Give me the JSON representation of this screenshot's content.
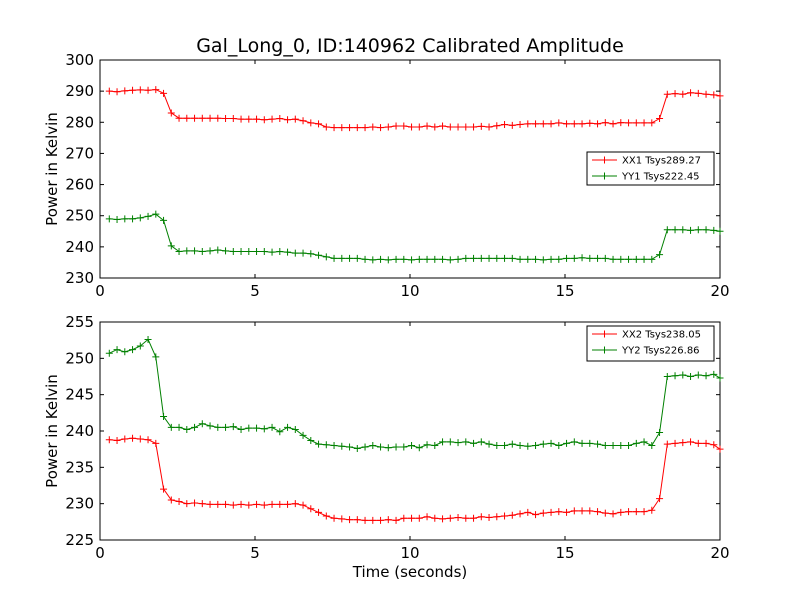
{
  "figure": {
    "title": "Gal_Long_0, ID:140962 Calibrated Amplitude"
  },
  "chart_data": [
    {
      "type": "line",
      "title": "Gal_Long_0, ID:140962 Calibrated Amplitude",
      "xlabel": "",
      "ylabel": "Power in Kelvin",
      "xlim": [
        0,
        20
      ],
      "ylim": [
        230,
        300
      ],
      "xticks": [
        "0",
        "5",
        "10",
        "15",
        "20"
      ],
      "yticks": [
        "230",
        "240",
        "250",
        "260",
        "270",
        "280",
        "290",
        "300"
      ],
      "grid": false,
      "legend_position": "center-right",
      "x": [
        0.3,
        0.55,
        0.8,
        1.05,
        1.3,
        1.55,
        1.8,
        2.05,
        2.3,
        2.55,
        2.8,
        3.05,
        3.3,
        3.55,
        3.8,
        4.05,
        4.3,
        4.55,
        4.8,
        5.05,
        5.3,
        5.55,
        5.8,
        6.05,
        6.3,
        6.55,
        6.8,
        7.05,
        7.3,
        7.55,
        7.8,
        8.05,
        8.3,
        8.55,
        8.8,
        9.05,
        9.3,
        9.55,
        9.8,
        10.05,
        10.3,
        10.55,
        10.8,
        11.05,
        11.3,
        11.55,
        11.8,
        12.05,
        12.3,
        12.55,
        12.8,
        13.05,
        13.3,
        13.55,
        13.8,
        14.05,
        14.3,
        14.55,
        14.8,
        15.05,
        15.3,
        15.55,
        15.8,
        16.05,
        16.3,
        16.55,
        16.8,
        17.05,
        17.3,
        17.55,
        17.8,
        18.05,
        18.3,
        18.55,
        18.8,
        19.05,
        19.3,
        19.55,
        19.8,
        20.0
      ],
      "series": [
        {
          "name": "XX1 Tsys289.27",
          "color": "#ff0000",
          "values": [
            290.0,
            289.8,
            290.1,
            290.3,
            290.4,
            290.3,
            290.5,
            289.3,
            283.0,
            281.3,
            281.3,
            281.3,
            281.3,
            281.3,
            281.3,
            281.2,
            281.2,
            281.0,
            281.0,
            281.0,
            280.8,
            281.0,
            281.2,
            280.8,
            281.0,
            280.5,
            279.8,
            279.5,
            278.5,
            278.3,
            278.3,
            278.3,
            278.3,
            278.3,
            278.5,
            278.3,
            278.5,
            278.8,
            278.8,
            278.5,
            278.5,
            278.8,
            278.5,
            278.8,
            278.5,
            278.5,
            278.5,
            278.5,
            278.7,
            278.5,
            278.9,
            279.3,
            279.0,
            279.3,
            279.5,
            279.5,
            279.5,
            279.5,
            279.8,
            279.5,
            279.5,
            279.5,
            279.7,
            279.5,
            279.9,
            279.5,
            279.9,
            279.8,
            279.8,
            279.8,
            279.8,
            281.2,
            289.0,
            289.2,
            289.0,
            289.5,
            289.3,
            289.0,
            288.8,
            288.5
          ]
        },
        {
          "name": "YY1 Tsys222.45",
          "color": "#008000",
          "values": [
            249.0,
            248.8,
            249.0,
            249.0,
            249.3,
            249.8,
            250.5,
            248.5,
            240.3,
            238.5,
            238.7,
            238.7,
            238.5,
            238.7,
            239.0,
            238.7,
            238.5,
            238.5,
            238.5,
            238.5,
            238.5,
            238.3,
            238.5,
            238.3,
            238.0,
            238.0,
            237.8,
            237.3,
            236.8,
            236.3,
            236.3,
            236.3,
            236.3,
            236.0,
            235.8,
            236.0,
            235.8,
            236.0,
            236.0,
            235.8,
            236.0,
            236.0,
            236.0,
            236.0,
            235.8,
            236.0,
            236.3,
            236.3,
            236.3,
            236.3,
            236.3,
            236.3,
            236.3,
            236.0,
            236.0,
            236.0,
            235.8,
            236.0,
            236.0,
            236.3,
            236.3,
            236.5,
            236.3,
            236.3,
            236.3,
            236.0,
            236.0,
            236.0,
            236.0,
            236.0,
            236.0,
            237.5,
            245.5,
            245.5,
            245.5,
            245.3,
            245.5,
            245.5,
            245.3,
            245.0
          ]
        }
      ]
    },
    {
      "type": "line",
      "title": "",
      "xlabel": "Time (seconds)",
      "ylabel": "Power in Kelvin",
      "xlim": [
        0,
        20
      ],
      "ylim": [
        225,
        255
      ],
      "xticks": [
        "0",
        "5",
        "10",
        "15",
        "20"
      ],
      "yticks": [
        "225",
        "230",
        "235",
        "240",
        "245",
        "250",
        "255"
      ],
      "grid": false,
      "legend_position": "top-right",
      "x": [
        0.3,
        0.55,
        0.8,
        1.05,
        1.3,
        1.55,
        1.8,
        2.05,
        2.3,
        2.55,
        2.8,
        3.05,
        3.3,
        3.55,
        3.8,
        4.05,
        4.3,
        4.55,
        4.8,
        5.05,
        5.3,
        5.55,
        5.8,
        6.05,
        6.3,
        6.55,
        6.8,
        7.05,
        7.3,
        7.55,
        7.8,
        8.05,
        8.3,
        8.55,
        8.8,
        9.05,
        9.3,
        9.55,
        9.8,
        10.05,
        10.3,
        10.55,
        10.8,
        11.05,
        11.3,
        11.55,
        11.8,
        12.05,
        12.3,
        12.55,
        12.8,
        13.05,
        13.3,
        13.55,
        13.8,
        14.05,
        14.3,
        14.55,
        14.8,
        15.05,
        15.3,
        15.55,
        15.8,
        16.05,
        16.3,
        16.55,
        16.8,
        17.05,
        17.3,
        17.55,
        17.8,
        18.05,
        18.3,
        18.55,
        18.8,
        19.05,
        19.3,
        19.55,
        19.8,
        20.0
      ],
      "series": [
        {
          "name": "XX2 Tsys238.05",
          "color": "#ff0000",
          "values": [
            238.8,
            238.7,
            238.9,
            239.0,
            238.9,
            238.8,
            238.3,
            232.0,
            230.5,
            230.3,
            230.0,
            230.1,
            230.0,
            229.9,
            229.9,
            229.9,
            229.8,
            229.9,
            229.8,
            229.9,
            229.8,
            229.9,
            229.9,
            229.9,
            230.0,
            229.8,
            229.3,
            228.8,
            228.3,
            228.0,
            227.9,
            227.8,
            227.8,
            227.7,
            227.7,
            227.7,
            227.8,
            227.7,
            228.0,
            228.0,
            228.0,
            228.2,
            228.0,
            227.9,
            228.0,
            228.1,
            228.0,
            228.0,
            228.2,
            228.1,
            228.2,
            228.3,
            228.4,
            228.6,
            228.8,
            228.5,
            228.7,
            228.8,
            228.9,
            228.8,
            229.0,
            229.0,
            229.0,
            228.9,
            228.7,
            228.6,
            228.8,
            228.9,
            228.9,
            228.9,
            229.1,
            230.7,
            238.2,
            238.3,
            238.4,
            238.5,
            238.3,
            238.3,
            238.1,
            237.5
          ]
        },
        {
          "name": "YY2 Tsys226.86",
          "color": "#008000",
          "values": [
            250.7,
            251.2,
            250.9,
            251.2,
            251.7,
            252.6,
            250.2,
            242.0,
            240.5,
            240.5,
            240.2,
            240.5,
            241.0,
            240.7,
            240.5,
            240.5,
            240.6,
            240.2,
            240.4,
            240.4,
            240.3,
            240.5,
            239.9,
            240.5,
            240.2,
            239.4,
            238.7,
            238.2,
            238.1,
            238.0,
            237.9,
            237.8,
            237.6,
            237.8,
            238.0,
            237.8,
            237.7,
            237.8,
            237.8,
            238.0,
            237.7,
            238.1,
            238.0,
            238.5,
            238.5,
            238.4,
            238.5,
            238.3,
            238.5,
            238.2,
            238.0,
            238.0,
            238.2,
            238.0,
            237.9,
            238.0,
            238.2,
            238.3,
            238.0,
            238.3,
            238.5,
            238.3,
            238.3,
            238.2,
            238.0,
            238.0,
            238.0,
            238.0,
            238.3,
            238.5,
            238.0,
            239.8,
            247.5,
            247.6,
            247.7,
            247.5,
            247.7,
            247.6,
            247.8,
            247.3
          ]
        }
      ]
    }
  ]
}
